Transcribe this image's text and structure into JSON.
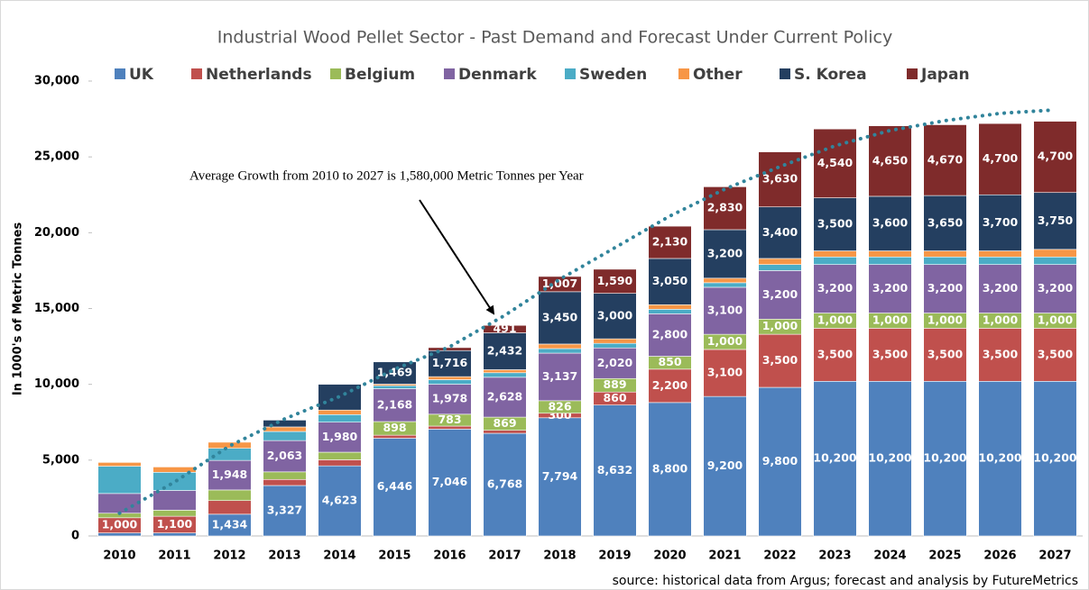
{
  "chart_data": {
    "type": "stacked_bar",
    "title": "Industrial Wood Pellet Sector - Past Demand and Forecast Under Current Policy",
    "y_label": "In 1000's of Metric Tonnes",
    "annotation": "Average Growth from 2010 to 2027 is 1,580,000 Metric Tonnes per Year",
    "source": "source: historical data from Argus; forecast and analysis by FutureMetrics",
    "categories": [
      "2010",
      "2011",
      "2012",
      "2013",
      "2014",
      "2015",
      "2016",
      "2017",
      "2018",
      "2019",
      "2020",
      "2021",
      "2022",
      "2023",
      "2024",
      "2025",
      "2026",
      "2027"
    ],
    "ylim": [
      0,
      30000
    ],
    "yticks": [
      0,
      {
        "value": 5000,
        "label": "5,000"
      },
      {
        "value": 10000,
        "label": "10,000"
      },
      {
        "value": 15000,
        "label": "15,000"
      },
      {
        "value": 20000,
        "label": "20,000"
      },
      {
        "value": 25000,
        "label": "25,000"
      },
      {
        "value": 30000,
        "label": "30,000"
      }
    ],
    "legend": "top",
    "trend": {
      "color": "#31849b",
      "values": [
        1500,
        3560,
        5940,
        7720,
        9200,
        11000,
        12480,
        14550,
        16930,
        19010,
        21100,
        22880,
        24360,
        25730,
        26740,
        27390,
        27870,
        28100
      ]
    },
    "series": [
      {
        "name": "UK",
        "color": "#4f81bd",
        "values": [
          200,
          200,
          1434,
          3327,
          4623,
          6446,
          7046,
          6768,
          7794,
          8632,
          8800,
          9200,
          9800,
          10200,
          10200,
          10200,
          10200,
          10200
        ],
        "value_labels": [
          null,
          null,
          "1,434",
          "3,327",
          "4,623",
          "6,446",
          "7,046",
          "6,768",
          "7,794",
          "8,632",
          "8,800",
          "9,200",
          "9,800",
          "10,200",
          "10,200",
          "10,200",
          "10,200",
          "10,200"
        ]
      },
      {
        "name": "Netherlands",
        "color": "#c0504d",
        "values": [
          1000,
          1100,
          900,
          400,
          400,
          200,
          200,
          200,
          300,
          860,
          2200,
          3100,
          3500,
          3500,
          3500,
          3500,
          3500,
          3500
        ],
        "value_labels": [
          "1,000",
          "1,100",
          null,
          null,
          null,
          null,
          null,
          null,
          "300",
          "860",
          "2,200",
          "3,100",
          "3,500",
          "3,500",
          "3,500",
          "3,500",
          "3,500",
          "3,500"
        ]
      },
      {
        "name": "Belgium",
        "color": "#9bbb59",
        "values": [
          300,
          400,
          700,
          500,
          500,
          898,
          783,
          869,
          826,
          889,
          850,
          1000,
          1000,
          1000,
          1000,
          1000,
          1000,
          1000
        ],
        "value_labels": [
          null,
          null,
          null,
          null,
          null,
          "898",
          "783",
          "869",
          "826",
          "889",
          "850",
          "1,000",
          "1,000",
          "1,000",
          "1,000",
          "1,000",
          "1,000",
          "1,000"
        ]
      },
      {
        "name": "Denmark",
        "color": "#8064a2",
        "values": [
          1300,
          1300,
          1948,
          2063,
          1980,
          2168,
          1978,
          2628,
          3137,
          2020,
          2800,
          3100,
          3200,
          3200,
          3200,
          3200,
          3200,
          3200
        ],
        "value_labels": [
          null,
          null,
          "1,948",
          "2,063",
          "1,980",
          "2,168",
          "1,978",
          "2,628",
          "3,137",
          "2,020",
          "2,800",
          "3,100",
          "3,200",
          "3,200",
          "3,200",
          "3,200",
          "3,200",
          "3,200"
        ]
      },
      {
        "name": "Sweden",
        "color": "#4bacc6",
        "values": [
          1800,
          1200,
          800,
          600,
          500,
          200,
          300,
          300,
          300,
          300,
          300,
          300,
          400,
          500,
          500,
          500,
          500,
          500
        ]
      },
      {
        "name": "Other",
        "color": "#f79646",
        "values": [
          250,
          350,
          400,
          300,
          300,
          100,
          200,
          200,
          300,
          300,
          300,
          300,
          400,
          400,
          400,
          400,
          400,
          500
        ]
      },
      {
        "name": "S. Korea",
        "color": "#243f60",
        "values": [
          0,
          0,
          0,
          450,
          1700,
          1469,
          1716,
          2432,
          3450,
          3000,
          3050,
          3200,
          3400,
          3500,
          3600,
          3650,
          3700,
          3750
        ],
        "value_labels": [
          null,
          null,
          null,
          null,
          null,
          "1,469",
          "1,716",
          "2,432",
          "3,450",
          "3,000",
          "3,050",
          "3,200",
          "3,400",
          "3,500",
          "3,600",
          "3,650",
          "3,700",
          "3,750"
        ]
      },
      {
        "name": "Japan",
        "color": "#7f2b2b",
        "values": [
          0,
          0,
          0,
          0,
          0,
          0,
          200,
          491,
          1007,
          1590,
          2130,
          2830,
          3630,
          4540,
          4650,
          4670,
          4700,
          4700
        ],
        "value_labels": [
          null,
          null,
          null,
          null,
          null,
          null,
          null,
          "491",
          "1,007",
          "1,590",
          "2,130",
          "2,830",
          "3,630",
          "4,540",
          "4,650",
          "4,670",
          "4,700",
          "4,700"
        ]
      }
    ]
  }
}
